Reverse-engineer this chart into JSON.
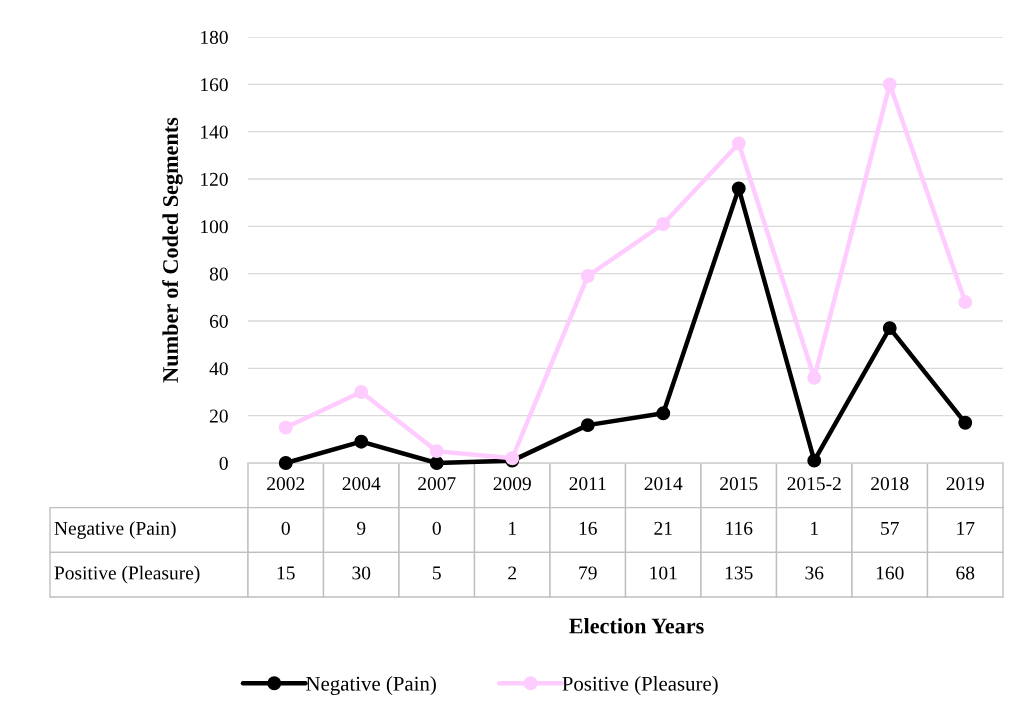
{
  "chart_data": {
    "type": "line",
    "annotations": [
      "Election Years"
    ],
    "ylabel": "Number of Coded Segments",
    "categories": [
      "2002",
      "2004",
      "2007",
      "2009",
      "2011",
      "2014",
      "2015",
      "2015-2",
      "2018",
      "2019"
    ],
    "series": [
      {
        "name": "Negative (Pain)",
        "color": "#000000",
        "values": [
          0,
          9,
          0,
          1,
          16,
          21,
          116,
          1,
          57,
          17
        ]
      },
      {
        "name": "Positive (Pleasure)",
        "color": "#ffccff",
        "values": [
          15,
          30,
          5,
          2,
          79,
          101,
          135,
          36,
          160,
          68
        ]
      }
    ],
    "ylim": [
      0,
      180
    ],
    "yticks": [
      0,
      20,
      40,
      60,
      80,
      100,
      120,
      140,
      160,
      180
    ],
    "grid": "y",
    "legend": "bottom",
    "marker": "circle",
    "line_style": "solid",
    "data_labels": true,
    "tick_labels": "y"
  }
}
